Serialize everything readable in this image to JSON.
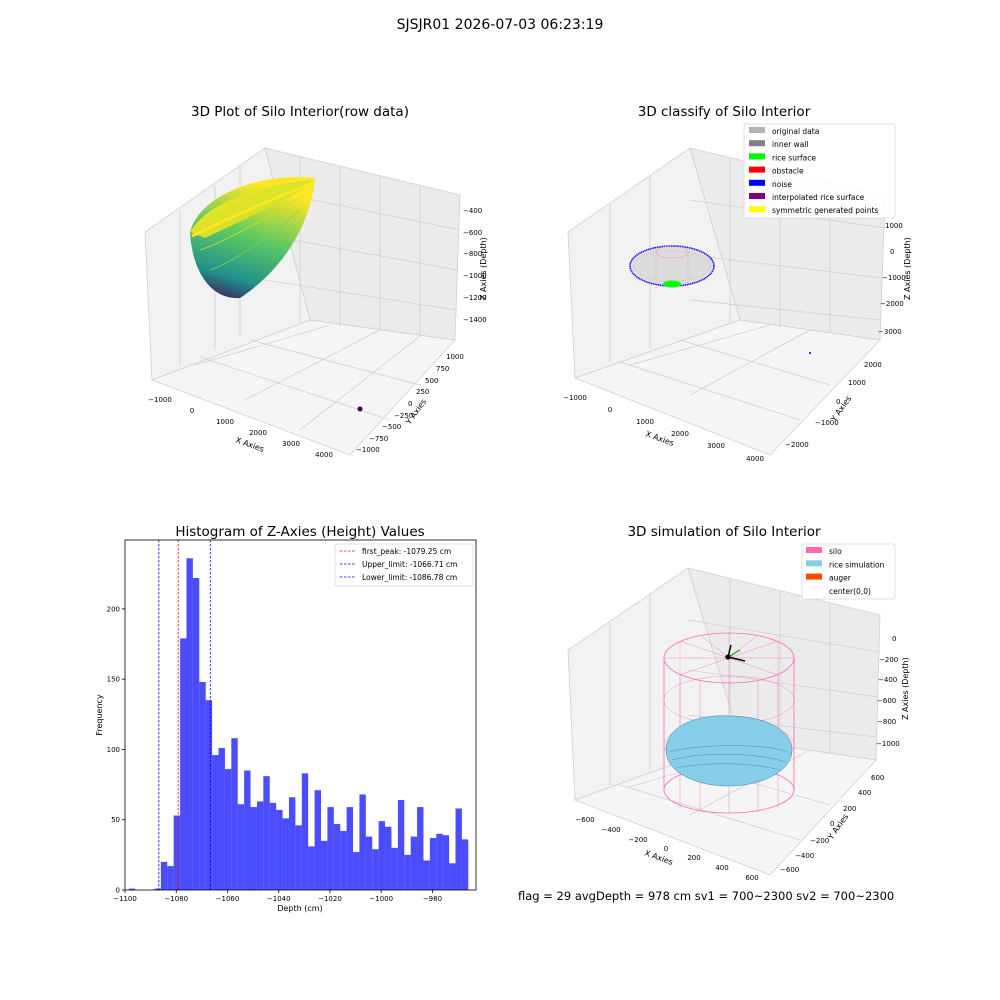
{
  "figure": {
    "suptitle": "SJSJR01 2026-07-03 06:23:19"
  },
  "chart_data": [
    {
      "type": "3d-surface",
      "title": "3D Plot of Silo Interior(row data)",
      "xlabel": "X Axies",
      "ylabel": "Y Axies",
      "zlabel": "Z Axies (Depth)",
      "x_ticks": [
        "−1000",
        "0",
        "1000",
        "2000",
        "3000",
        "4000"
      ],
      "y_ticks": [
        "−1000",
        "−750",
        "−500",
        "−250",
        "0",
        "250",
        "500",
        "750",
        "1000"
      ],
      "z_ticks": [
        "−1400",
        "−1200",
        "−1000",
        "−800",
        "−600",
        "−400"
      ],
      "xlim": [
        -1300,
        4200
      ],
      "ylim": [
        -1100,
        1100
      ],
      "zlim": [
        -1500,
        -350
      ],
      "colormap": [
        "#440154",
        "#21918c",
        "#5ec962",
        "#fde725"
      ],
      "outlier_point": {
        "x": 4000,
        "y": -300,
        "z": -1400,
        "color": "#440154"
      }
    },
    {
      "type": "3d-scatter",
      "title": "3D classify of Silo Interior",
      "xlabel": "X Axies",
      "ylabel": "Y Axies",
      "zlabel": "Z Axies (Depth)",
      "x_ticks": [
        "−1000",
        "0",
        "1000",
        "2000",
        "3000",
        "4000"
      ],
      "y_ticks": [
        "−2000",
        "−1000",
        "0",
        "1000",
        "2000"
      ],
      "z_ticks": [
        "−3000",
        "−2000",
        "−1000",
        "0",
        "1000"
      ],
      "legend_position": "top-right",
      "legend": [
        {
          "label": "original data",
          "color": "#b3b3b3"
        },
        {
          "label": "inner wall",
          "color": "#808080"
        },
        {
          "label": "rice surface",
          "color": "#00ff00"
        },
        {
          "label": "obstacle",
          "color": "#ff0000"
        },
        {
          "label": "noise",
          "color": "#0000ff"
        },
        {
          "label": "interpolated rice surface",
          "color": "#800080"
        },
        {
          "label": "symmetric generated points",
          "color": "#ffff00"
        }
      ]
    },
    {
      "type": "bar",
      "title": "Histogram of Z-Axies (Height) Values",
      "xlabel": "Depth (cm)",
      "ylabel": "Frequency",
      "xlim": [
        -1100,
        -963
      ],
      "ylim": [
        0,
        249
      ],
      "x_ticks": [
        -1100,
        -1080,
        -1060,
        -1040,
        -1020,
        -1000,
        -980
      ],
      "y_ticks": [
        0,
        50,
        100,
        150,
        200
      ],
      "bar_color": "#0000ff",
      "bar_alpha": 0.7,
      "bin_start": -1098.5,
      "bin_width": 2.5,
      "values": [
        1,
        0,
        0,
        0,
        1,
        20,
        17,
        53,
        179,
        236,
        222,
        148,
        135,
        96,
        101,
        86,
        108,
        61,
        85,
        59,
        63,
        81,
        62,
        57,
        51,
        66,
        46,
        83,
        31,
        71,
        35,
        59,
        47,
        42,
        59,
        27,
        68,
        38,
        29,
        49,
        45,
        30,
        64,
        25,
        38,
        59,
        21,
        37,
        40,
        39,
        19,
        58,
        36
      ],
      "vlines": [
        {
          "label": "first_peak: -1079.25 cm",
          "x": -1079.25,
          "color": "#ff0000"
        },
        {
          "label": "Upper_limit: -1066.71 cm",
          "x": -1066.71,
          "color": "#0000ff"
        },
        {
          "label": "Lower_limit: -1086.78 cm",
          "x": -1086.78,
          "color": "#0000ff"
        }
      ],
      "legend_position": "top-right"
    },
    {
      "type": "3d-simulation",
      "title": "3D simulation of Silo Interior",
      "xlabel": "X Axies",
      "ylabel": "Y Axies",
      "zlabel": "Z Axies (Depth)",
      "x_ticks": [
        "−600",
        "−400",
        "−200",
        "0",
        "200",
        "400",
        "600"
      ],
      "y_ticks": [
        "−600",
        "−400",
        "−200",
        "0",
        "200",
        "400",
        "600"
      ],
      "z_ticks": [
        "−1000",
        "−800",
        "−600",
        "−400",
        "−200",
        "0"
      ],
      "legend_position": "top-right",
      "legend": [
        {
          "label": "silo",
          "color": "#ff69b4"
        },
        {
          "label": "rice simulation",
          "color": "#87ceeb"
        },
        {
          "label": "auger",
          "color": "#ff4500"
        },
        {
          "label": "center(0,0)",
          "color": "#ffffff"
        }
      ]
    }
  ],
  "stats_text": "flag = 29   avgDepth = 978 cm   sv1 = 700~2300   sv2 = 700~2300"
}
